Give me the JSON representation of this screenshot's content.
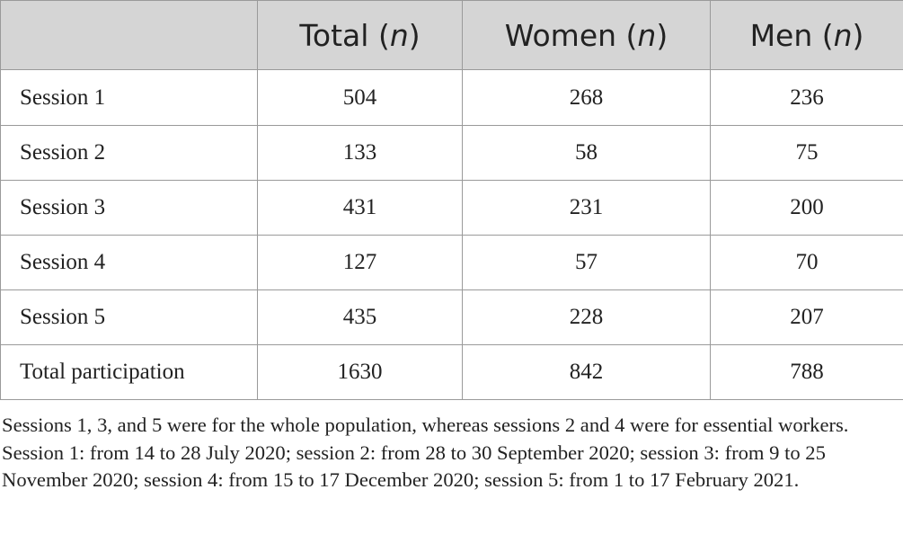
{
  "table": {
    "columns": [
      {
        "name": "",
        "var": ""
      },
      {
        "name": "Total ",
        "var": "n"
      },
      {
        "name": "Women ",
        "var": "n"
      },
      {
        "name": "Men ",
        "var": "n"
      }
    ],
    "rows": [
      {
        "label": "Session 1",
        "total": "504",
        "women": "268",
        "men": "236"
      },
      {
        "label": "Session 2",
        "total": "133",
        "women": "58",
        "men": "75"
      },
      {
        "label": "Session 3",
        "total": "431",
        "women": "231",
        "men": "200"
      },
      {
        "label": "Session 4",
        "total": "127",
        "women": "57",
        "men": "70"
      },
      {
        "label": "Session 5",
        "total": "435",
        "women": "228",
        "men": "207"
      },
      {
        "label": "Total participation",
        "total": "1630",
        "women": "842",
        "men": "788"
      }
    ]
  },
  "footnote": {
    "text": "Sessions 1, 3, and 5 were for the whole population, whereas sessions 2 and 4 were for essential workers. Session 1: from 14 to 28 July 2020; session 2: from 28 to 30 September 2020; session 3: from 9 to 25 November 2020; session 4: from 15 to 17 December 2020; session 5: from 1 to 17 February 2021."
  }
}
